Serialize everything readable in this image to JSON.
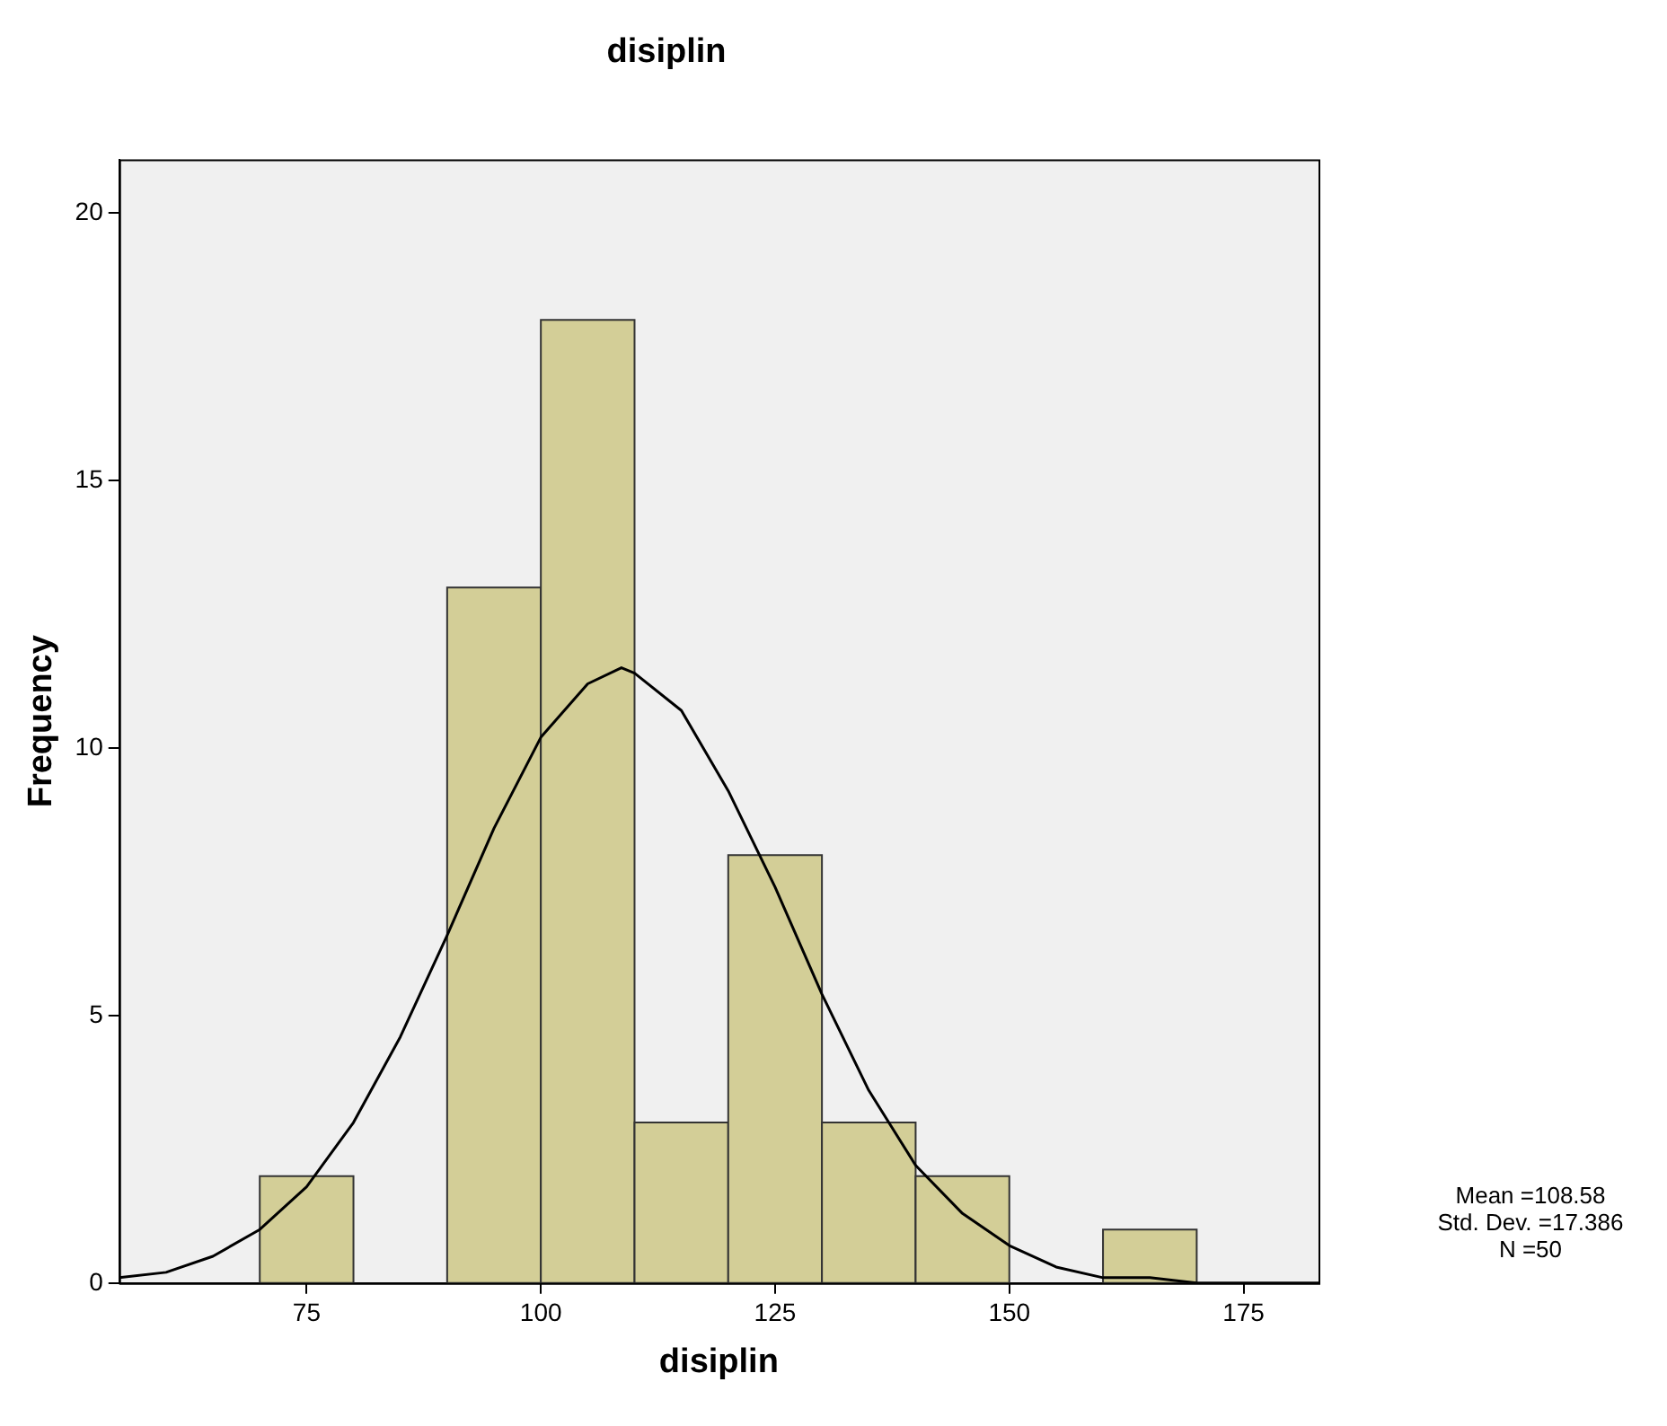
{
  "chart_data": {
    "type": "histogram",
    "title": "disiplin",
    "xlabel": "disiplin",
    "ylabel": "Frequency",
    "bins": [
      70,
      80,
      90,
      100,
      110,
      120,
      130,
      140,
      150,
      160,
      170
    ],
    "values": [
      2,
      0,
      13,
      18,
      3,
      8,
      3,
      2,
      0,
      1
    ],
    "color": "#d3ce97",
    "series": [
      {
        "type": "line",
        "color": "#000000",
        "marker": "none",
        "x": [
          55,
          60,
          65,
          70,
          75,
          80,
          85,
          90,
          95,
          100,
          105,
          108.6,
          110,
          115,
          120,
          125,
          130,
          135,
          140,
          145,
          150,
          155,
          160,
          165,
          170,
          175,
          183
        ],
        "values": [
          0.1,
          0.2,
          0.5,
          1.0,
          1.8,
          3.0,
          4.6,
          6.5,
          8.5,
          10.2,
          11.2,
          11.5,
          11.4,
          10.7,
          9.2,
          7.4,
          5.4,
          3.6,
          2.2,
          1.3,
          0.7,
          0.3,
          0.1,
          0.1,
          0,
          0,
          0
        ]
      }
    ],
    "xlim": [
      55,
      183
    ],
    "ylim": [
      0,
      21
    ],
    "xticks": [
      75,
      100,
      125,
      150,
      175
    ],
    "yticks": [
      0,
      5,
      10,
      15,
      20
    ],
    "annotations": [
      "Mean =108.58",
      "Std. Dev. =17.386",
      "N =50"
    ]
  }
}
